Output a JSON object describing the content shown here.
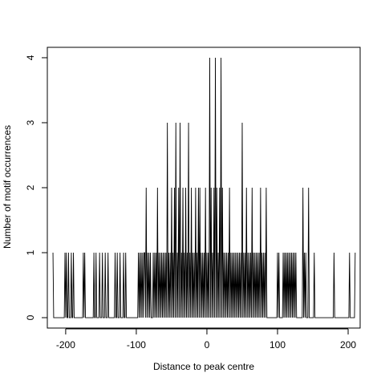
{
  "chart_data": {
    "type": "line",
    "title": "",
    "xlabel": "Distance to peak centre",
    "ylabel": "Number of motif occurrences",
    "xlim": [
      -226,
      217
    ],
    "ylim": [
      -0.16,
      4.16
    ],
    "xticks": [
      -200,
      -100,
      0,
      100,
      200
    ],
    "yticks": [
      0,
      1,
      2,
      3,
      4
    ],
    "xtick_labels": [
      "-200",
      "-100",
      "0",
      "100",
      "200"
    ],
    "ytick_labels": [
      "0",
      "1",
      "2",
      "3",
      "4"
    ],
    "grid": false,
    "legend": "none",
    "line_color": "#000000",
    "x_start": -218,
    "x_end": 210,
    "occurrences": [
      [
        -218,
        1
      ],
      [
        -201,
        1
      ],
      [
        -199,
        1
      ],
      [
        -196,
        1
      ],
      [
        -192,
        1
      ],
      [
        -189,
        1
      ],
      [
        -175,
        1
      ],
      [
        -173,
        1
      ],
      [
        -160,
        1
      ],
      [
        -157,
        1
      ],
      [
        -152,
        1
      ],
      [
        -148,
        1
      ],
      [
        -144,
        1
      ],
      [
        -140,
        1
      ],
      [
        -130,
        1
      ],
      [
        -127,
        1
      ],
      [
        -123,
        1
      ],
      [
        -118,
        1
      ],
      [
        -115,
        1
      ],
      [
        -97,
        1
      ],
      [
        -95,
        1
      ],
      [
        -93,
        1
      ],
      [
        -91,
        1
      ],
      [
        -89,
        1
      ],
      [
        -88,
        1
      ],
      [
        -86,
        2
      ],
      [
        -84,
        1
      ],
      [
        -82,
        1
      ],
      [
        -80,
        1
      ],
      [
        -76,
        1
      ],
      [
        -74,
        1
      ],
      [
        -72,
        1
      ],
      [
        -70,
        2
      ],
      [
        -68,
        1
      ],
      [
        -66,
        1
      ],
      [
        -64,
        1
      ],
      [
        -62,
        1
      ],
      [
        -60,
        1
      ],
      [
        -58,
        1
      ],
      [
        -56,
        3
      ],
      [
        -54,
        1
      ],
      [
        -52,
        1
      ],
      [
        -50,
        2
      ],
      [
        -48,
        1
      ],
      [
        -46,
        2
      ],
      [
        -44,
        3
      ],
      [
        -42,
        1
      ],
      [
        -40,
        2
      ],
      [
        -38,
        3
      ],
      [
        -36,
        1
      ],
      [
        -34,
        2
      ],
      [
        -32,
        1
      ],
      [
        -30,
        2
      ],
      [
        -28,
        1
      ],
      [
        -26,
        3
      ],
      [
        -24,
        1
      ],
      [
        -22,
        2
      ],
      [
        -20,
        1
      ],
      [
        -18,
        1
      ],
      [
        -16,
        2
      ],
      [
        -14,
        1
      ],
      [
        -12,
        2
      ],
      [
        -10,
        2
      ],
      [
        -8,
        1
      ],
      [
        -6,
        1
      ],
      [
        -4,
        1
      ],
      [
        -2,
        2
      ],
      [
        0,
        1
      ],
      [
        2,
        1
      ],
      [
        4,
        4
      ],
      [
        6,
        2
      ],
      [
        8,
        1
      ],
      [
        10,
        2
      ],
      [
        12,
        4
      ],
      [
        14,
        2
      ],
      [
        16,
        1
      ],
      [
        18,
        2
      ],
      [
        20,
        4
      ],
      [
        22,
        2
      ],
      [
        24,
        1
      ],
      [
        26,
        1
      ],
      [
        28,
        1
      ],
      [
        30,
        1
      ],
      [
        32,
        2
      ],
      [
        34,
        1
      ],
      [
        36,
        1
      ],
      [
        38,
        1
      ],
      [
        40,
        1
      ],
      [
        42,
        1
      ],
      [
        44,
        1
      ],
      [
        46,
        1
      ],
      [
        48,
        1
      ],
      [
        50,
        3
      ],
      [
        52,
        1
      ],
      [
        54,
        1
      ],
      [
        56,
        2
      ],
      [
        58,
        1
      ],
      [
        60,
        1
      ],
      [
        62,
        1
      ],
      [
        64,
        2
      ],
      [
        66,
        1
      ],
      [
        68,
        1
      ],
      [
        70,
        1
      ],
      [
        72,
        1
      ],
      [
        74,
        1
      ],
      [
        76,
        2
      ],
      [
        78,
        1
      ],
      [
        80,
        1
      ],
      [
        82,
        1
      ],
      [
        84,
        2
      ],
      [
        100,
        1
      ],
      [
        102,
        1
      ],
      [
        108,
        1
      ],
      [
        110,
        1
      ],
      [
        112,
        1
      ],
      [
        114,
        1
      ],
      [
        116,
        1
      ],
      [
        118,
        1
      ],
      [
        120,
        1
      ],
      [
        122,
        1
      ],
      [
        124,
        1
      ],
      [
        126,
        1
      ],
      [
        136,
        2
      ],
      [
        138,
        1
      ],
      [
        140,
        1
      ],
      [
        144,
        2
      ],
      [
        152,
        1
      ],
      [
        180,
        1
      ],
      [
        202,
        1
      ],
      [
        210,
        1
      ]
    ]
  }
}
